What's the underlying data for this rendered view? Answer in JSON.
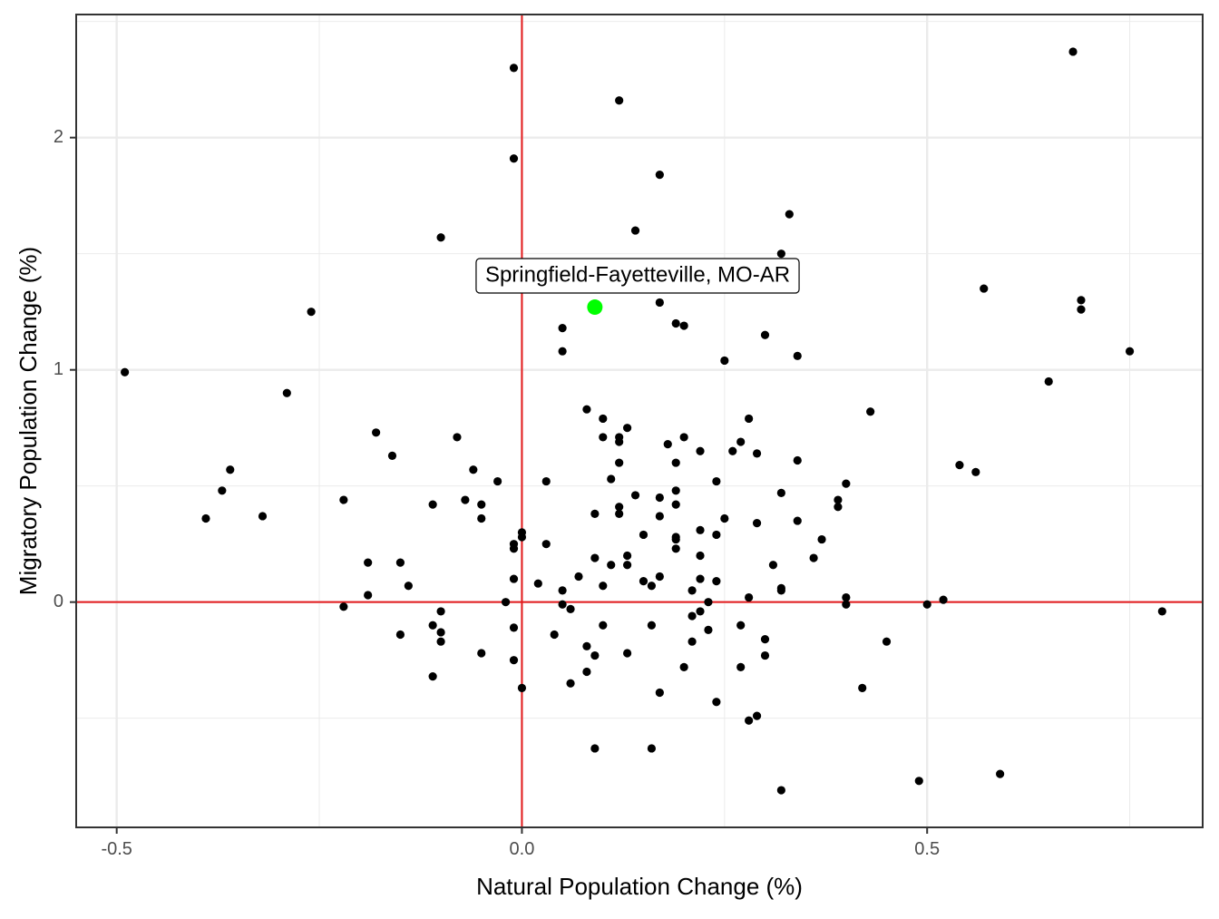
{
  "chart_data": {
    "type": "scatter",
    "title": "",
    "xlabel": "Natural Population Change (%)",
    "ylabel": "Migratory Population Change (%)",
    "xlim": [
      -0.55,
      0.84
    ],
    "ylim": [
      -0.97,
      2.53
    ],
    "x_ticks": [
      {
        "value": -0.5,
        "label": "-0.5"
      },
      {
        "value": 0.0,
        "label": "0.0"
      },
      {
        "value": 0.5,
        "label": "0.5"
      }
    ],
    "y_ticks": [
      {
        "value": 0,
        "label": "0"
      },
      {
        "value": 1,
        "label": "1"
      },
      {
        "value": 2,
        "label": "2"
      }
    ],
    "grid": true,
    "reference_lines": {
      "x": 0,
      "y": 0,
      "color": "#e41a1c"
    },
    "colors": {
      "points": "#000000",
      "highlight": "#00ff00",
      "reference": "#e41a1c",
      "grid": "#ebebeb",
      "panel_border": "#333333"
    },
    "highlight": {
      "label": "Springfield-Fayetteville, MO-AR",
      "x": 0.09,
      "y": 1.27
    },
    "points": [
      [
        -0.49,
        0.99
      ],
      [
        -0.39,
        0.36
      ],
      [
        -0.37,
        0.48
      ],
      [
        -0.36,
        0.57
      ],
      [
        -0.32,
        0.37
      ],
      [
        -0.29,
        0.9
      ],
      [
        -0.26,
        1.25
      ],
      [
        -0.22,
        0.44
      ],
      [
        -0.22,
        -0.02
      ],
      [
        -0.19,
        0.17
      ],
      [
        -0.19,
        0.03
      ],
      [
        -0.18,
        0.73
      ],
      [
        -0.16,
        0.63
      ],
      [
        -0.15,
        0.17
      ],
      [
        -0.15,
        -0.14
      ],
      [
        -0.14,
        0.07
      ],
      [
        -0.11,
        0.42
      ],
      [
        -0.11,
        -0.1
      ],
      [
        -0.11,
        -0.32
      ],
      [
        -0.1,
        -0.04
      ],
      [
        -0.1,
        -0.13
      ],
      [
        -0.1,
        -0.17
      ],
      [
        -0.1,
        1.57
      ],
      [
        -0.08,
        0.71
      ],
      [
        -0.07,
        0.44
      ],
      [
        -0.06,
        0.57
      ],
      [
        -0.05,
        0.42
      ],
      [
        -0.05,
        0.36
      ],
      [
        -0.05,
        -0.22
      ],
      [
        -0.03,
        0.52
      ],
      [
        -0.02,
        0.0
      ],
      [
        -0.01,
        0.25
      ],
      [
        -0.01,
        0.23
      ],
      [
        -0.01,
        0.1
      ],
      [
        -0.01,
        -0.11
      ],
      [
        -0.01,
        -0.25
      ],
      [
        -0.01,
        1.91
      ],
      [
        -0.01,
        2.3
      ],
      [
        0.0,
        0.3
      ],
      [
        0.0,
        0.28
      ],
      [
        0.0,
        -0.37
      ],
      [
        0.02,
        0.08
      ],
      [
        0.03,
        0.52
      ],
      [
        0.03,
        0.25
      ],
      [
        0.04,
        -0.14
      ],
      [
        0.05,
        1.18
      ],
      [
        0.05,
        1.08
      ],
      [
        0.05,
        0.05
      ],
      [
        0.05,
        -0.01
      ],
      [
        0.06,
        -0.03
      ],
      [
        0.06,
        -0.35
      ],
      [
        0.07,
        0.11
      ],
      [
        0.08,
        0.83
      ],
      [
        0.08,
        -0.19
      ],
      [
        0.08,
        -0.3
      ],
      [
        0.09,
        0.38
      ],
      [
        0.09,
        0.19
      ],
      [
        0.09,
        -0.23
      ],
      [
        0.09,
        -0.63
      ],
      [
        0.1,
        0.79
      ],
      [
        0.1,
        0.71
      ],
      [
        0.1,
        0.07
      ],
      [
        0.1,
        -0.1
      ],
      [
        0.11,
        0.53
      ],
      [
        0.11,
        0.16
      ],
      [
        0.12,
        0.71
      ],
      [
        0.12,
        0.69
      ],
      [
        0.12,
        0.6
      ],
      [
        0.12,
        0.41
      ],
      [
        0.12,
        0.38
      ],
      [
        0.12,
        2.16
      ],
      [
        0.13,
        0.75
      ],
      [
        0.13,
        0.2
      ],
      [
        0.13,
        0.16
      ],
      [
        0.13,
        -0.22
      ],
      [
        0.14,
        0.46
      ],
      [
        0.14,
        1.6
      ],
      [
        0.15,
        0.29
      ],
      [
        0.15,
        0.09
      ],
      [
        0.16,
        0.07
      ],
      [
        0.16,
        -0.1
      ],
      [
        0.16,
        -0.63
      ],
      [
        0.17,
        0.45
      ],
      [
        0.17,
        0.37
      ],
      [
        0.17,
        0.11
      ],
      [
        0.17,
        -0.39
      ],
      [
        0.17,
        1.84
      ],
      [
        0.17,
        1.29
      ],
      [
        0.18,
        0.68
      ],
      [
        0.19,
        0.6
      ],
      [
        0.19,
        0.48
      ],
      [
        0.19,
        0.42
      ],
      [
        0.19,
        0.28
      ],
      [
        0.19,
        0.27
      ],
      [
        0.19,
        0.23
      ],
      [
        0.19,
        1.2
      ],
      [
        0.2,
        0.71
      ],
      [
        0.2,
        -0.28
      ],
      [
        0.2,
        1.19
      ],
      [
        0.21,
        0.05
      ],
      [
        0.21,
        -0.06
      ],
      [
        0.21,
        -0.17
      ],
      [
        0.22,
        0.65
      ],
      [
        0.22,
        0.31
      ],
      [
        0.22,
        0.2
      ],
      [
        0.22,
        0.1
      ],
      [
        0.22,
        -0.04
      ],
      [
        0.23,
        0.0
      ],
      [
        0.23,
        -0.12
      ],
      [
        0.24,
        0.52
      ],
      [
        0.24,
        0.29
      ],
      [
        0.24,
        0.09
      ],
      [
        0.24,
        -0.43
      ],
      [
        0.25,
        0.36
      ],
      [
        0.25,
        1.04
      ],
      [
        0.26,
        0.65
      ],
      [
        0.27,
        0.69
      ],
      [
        0.27,
        -0.1
      ],
      [
        0.27,
        -0.28
      ],
      [
        0.28,
        0.79
      ],
      [
        0.28,
        0.02
      ],
      [
        0.28,
        -0.51
      ],
      [
        0.29,
        0.64
      ],
      [
        0.29,
        0.34
      ],
      [
        0.29,
        -0.49
      ],
      [
        0.3,
        -0.16
      ],
      [
        0.3,
        -0.23
      ],
      [
        0.3,
        1.15
      ],
      [
        0.31,
        0.16
      ],
      [
        0.32,
        0.47
      ],
      [
        0.32,
        0.06
      ],
      [
        0.32,
        0.05
      ],
      [
        0.32,
        -0.81
      ],
      [
        0.32,
        1.5
      ],
      [
        0.33,
        1.67
      ],
      [
        0.34,
        0.61
      ],
      [
        0.34,
        0.35
      ],
      [
        0.34,
        1.06
      ],
      [
        0.36,
        0.19
      ],
      [
        0.37,
        0.27
      ],
      [
        0.39,
        0.44
      ],
      [
        0.39,
        0.41
      ],
      [
        0.4,
        0.51
      ],
      [
        0.4,
        0.02
      ],
      [
        0.4,
        -0.01
      ],
      [
        0.42,
        -0.37
      ],
      [
        0.43,
        0.82
      ],
      [
        0.45,
        -0.17
      ],
      [
        0.49,
        -0.77
      ],
      [
        0.5,
        -0.01
      ],
      [
        0.52,
        0.01
      ],
      [
        0.54,
        0.59
      ],
      [
        0.56,
        0.56
      ],
      [
        0.57,
        1.35
      ],
      [
        0.59,
        -0.74
      ],
      [
        0.65,
        0.95
      ],
      [
        0.68,
        2.37
      ],
      [
        0.69,
        1.3
      ],
      [
        0.69,
        1.26
      ],
      [
        0.75,
        1.08
      ],
      [
        0.79,
        -0.04
      ]
    ]
  }
}
